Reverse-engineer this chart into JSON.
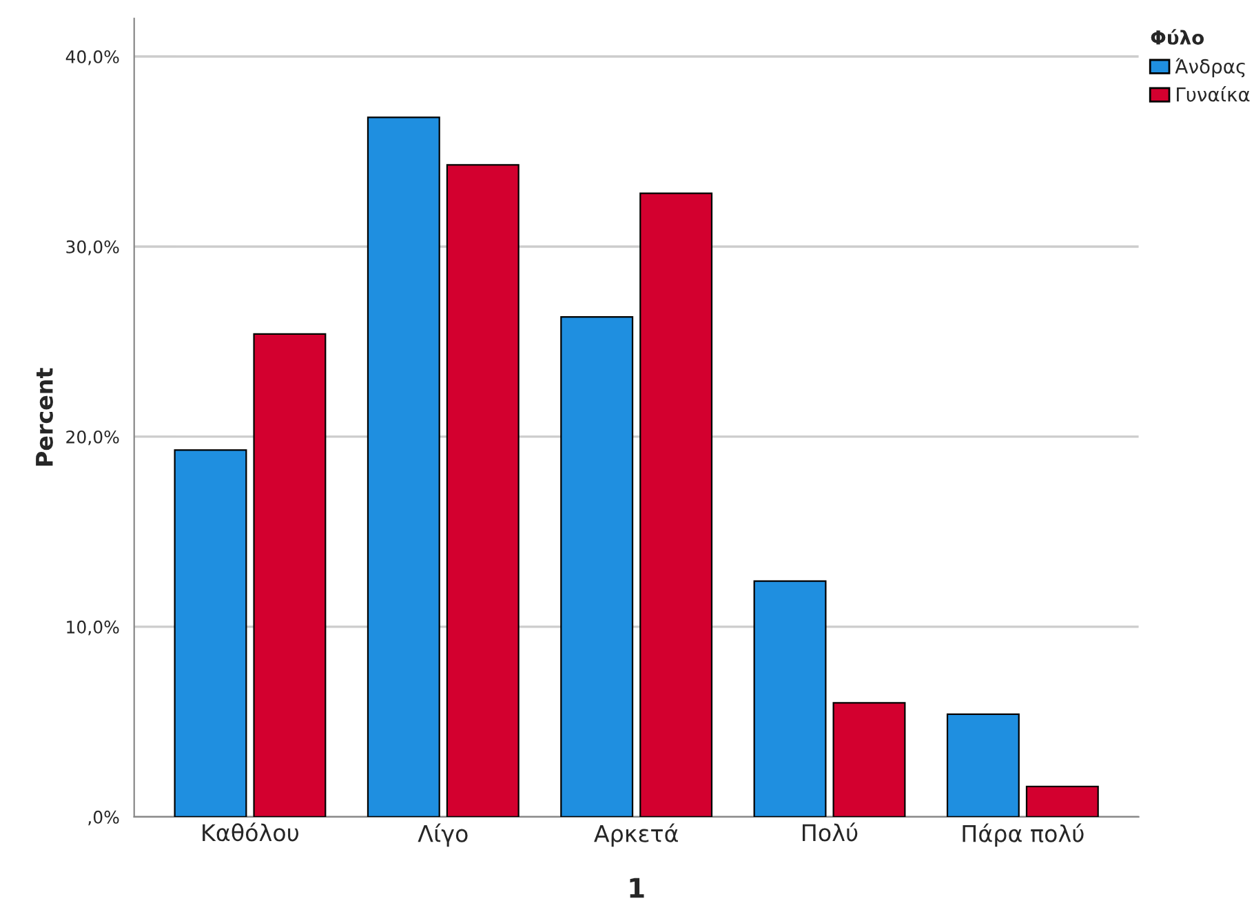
{
  "chart_data": {
    "type": "bar",
    "xlabel": "1",
    "ylabel": "Percent",
    "legend_title": "Φύλο",
    "categories": [
      "Καθόλου",
      "Λίγο",
      "Αρκετά",
      "Πολύ",
      "Πάρα πολύ"
    ],
    "series": [
      {
        "name": "Άνδρας",
        "color": "#1f8fe0",
        "values": [
          19.3,
          36.8,
          26.3,
          12.4,
          5.4
        ]
      },
      {
        "name": "Γυναίκα",
        "color": "#d3002f",
        "values": [
          25.4,
          34.3,
          32.8,
          6.0,
          1.6
        ]
      }
    ],
    "ylim": [
      0,
      42
    ],
    "yticks": [
      {
        "value": 0,
        "label": ",0%"
      },
      {
        "value": 10,
        "label": "10,0%"
      },
      {
        "value": 20,
        "label": "20,0%"
      },
      {
        "value": 30,
        "label": "30,0%"
      },
      {
        "value": 40,
        "label": "40,0%"
      }
    ],
    "grid": "y",
    "legend": "top right"
  }
}
